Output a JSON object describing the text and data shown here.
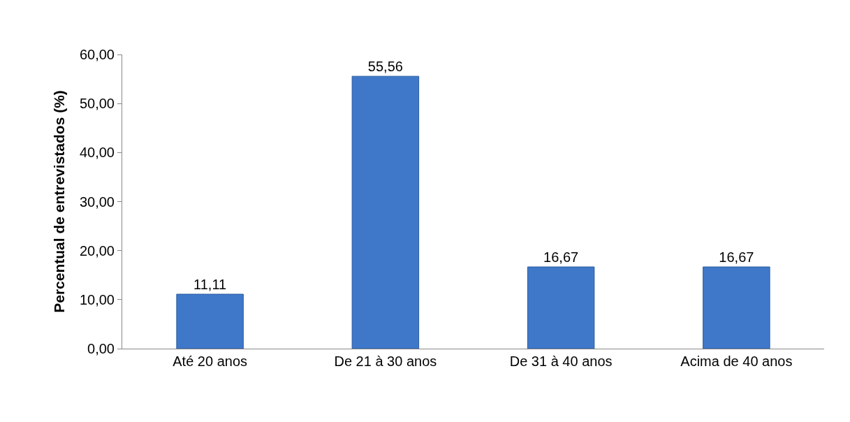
{
  "chart_data": {
    "type": "bar",
    "ylabel": "Percentual de entrevistados (%)",
    "categories": [
      "Até 20 anos",
      "De 21 à 30 anos",
      "De 31 à 40 anos",
      "Acima de 40 anos"
    ],
    "values": [
      11.11,
      55.56,
      16.67,
      16.67
    ],
    "value_labels": [
      "11,11",
      "55,56",
      "16,67",
      "16,67"
    ],
    "color": "#3f78c9",
    "ylim": [
      0,
      60
    ],
    "yticks": [
      {
        "value": 0,
        "label": "0,00"
      },
      {
        "value": 10,
        "label": "10,00"
      },
      {
        "value": 20,
        "label": "20,00"
      },
      {
        "value": 30,
        "label": "30,00"
      },
      {
        "value": 40,
        "label": "40,00"
      },
      {
        "value": 50,
        "label": "50,00"
      },
      {
        "value": 60,
        "label": "60,00"
      }
    ],
    "legend": false
  }
}
